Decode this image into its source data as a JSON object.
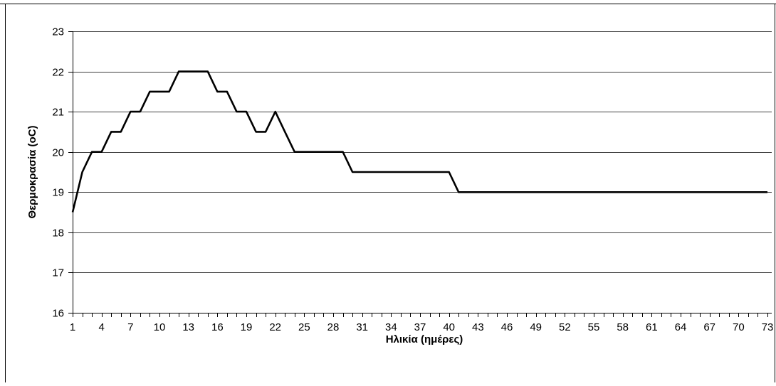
{
  "chart_data": {
    "type": "line",
    "title": "",
    "xlabel": "Ηλικία (ημέρες)",
    "ylabel": "Θερμοκρασία (οC)",
    "ylim": [
      16,
      23
    ],
    "yticks": [
      "16",
      "17",
      "18",
      "19",
      "20",
      "21",
      "22",
      "23"
    ],
    "xlim": [
      1,
      73
    ],
    "xticks": [
      "1",
      "4",
      "7",
      "10",
      "13",
      "16",
      "19",
      "22",
      "25",
      "28",
      "31",
      "34",
      "37",
      "40",
      "43",
      "46",
      "49",
      "52",
      "55",
      "58",
      "61",
      "64",
      "67",
      "70",
      "73"
    ],
    "grid": "horizontal major gridlines",
    "legend": "none",
    "series": [
      {
        "color": "#000000",
        "x": [
          1,
          2,
          3,
          4,
          5,
          6,
          7,
          8,
          9,
          10,
          11,
          12,
          13,
          14,
          15,
          16,
          17,
          18,
          19,
          20,
          21,
          22,
          23,
          24,
          25,
          26,
          27,
          28,
          29,
          30,
          31,
          32,
          33,
          34,
          35,
          36,
          37,
          38,
          39,
          40,
          41,
          42,
          43,
          44,
          45,
          46,
          47,
          48,
          49,
          50,
          51,
          52,
          53,
          54,
          55,
          56,
          57,
          58,
          59,
          60,
          61,
          62,
          63,
          64,
          65,
          66,
          67,
          68,
          69,
          70,
          71,
          72,
          73
        ],
        "values": [
          18.5,
          19.5,
          20,
          20,
          20.5,
          20.5,
          21,
          21,
          21.5,
          21.5,
          21.5,
          22,
          22,
          22,
          22,
          21.5,
          21.5,
          21,
          21,
          20.5,
          20.5,
          21,
          20.5,
          20,
          20,
          20,
          20,
          20,
          20,
          19.5,
          19.5,
          19.5,
          19.5,
          19.5,
          19.5,
          19.5,
          19.5,
          19.5,
          19.5,
          19.5,
          19,
          19,
          19,
          19,
          19,
          19,
          19,
          19,
          19,
          19,
          19,
          19,
          19,
          19,
          19,
          19,
          19,
          19,
          19,
          19,
          19,
          19,
          19,
          19,
          19,
          19,
          19,
          19,
          19,
          19,
          19,
          19,
          19
        ]
      }
    ]
  }
}
